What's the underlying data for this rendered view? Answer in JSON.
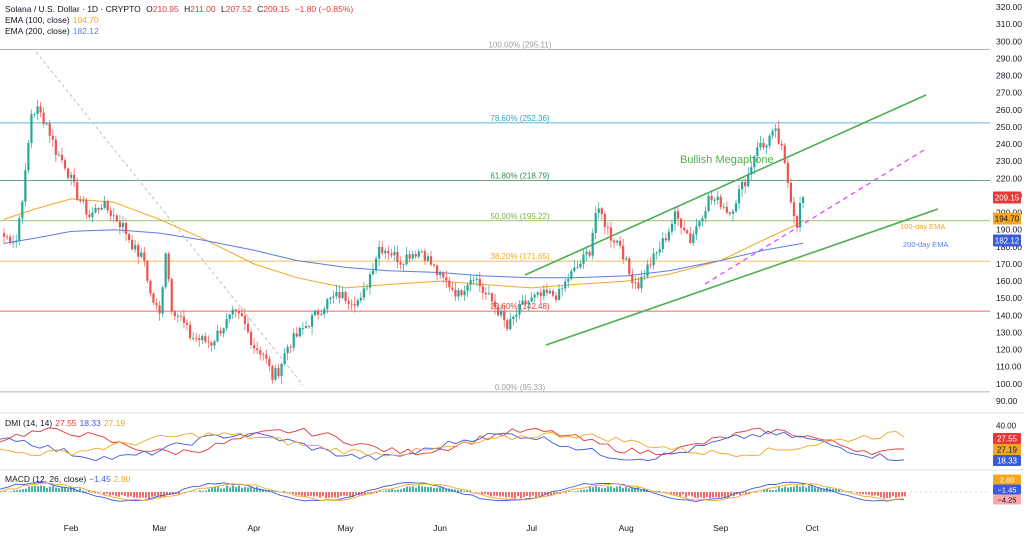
{
  "header": {
    "symbol": "Solana / U.S. Dollar · 1D · CRYPTO",
    "o_label": "O",
    "o_value": "210.95",
    "h_label": "H",
    "h_value": "211.00",
    "l_label": "L",
    "l_value": "207.52",
    "c_label": "C",
    "c_value": "209.15",
    "change": "−1.80 (−0.85%)"
  },
  "indicators_legend": [
    {
      "label": "EMA (100, close)",
      "value": "194.70",
      "color": "#f5a623"
    },
    {
      "label": "EMA (200, close)",
      "value": "182.12",
      "color": "#5b7de8"
    }
  ],
  "chart_data": [
    {
      "type": "candlestick",
      "title": "Solana / U.S. Dollar · 1D · CRYPTO",
      "x_ticks": [
        "Feb",
        "Mar",
        "Apr",
        "May",
        "Jun",
        "Jul",
        "Aug",
        "Sep",
        "Oct"
      ],
      "y_ticks": [
        90,
        100,
        110,
        120,
        130,
        140,
        150,
        160,
        170,
        180,
        190,
        200,
        210,
        220,
        230,
        240,
        250,
        260,
        270,
        280,
        290,
        300,
        310,
        320
      ],
      "ylim": [
        85,
        320
      ],
      "grid": false,
      "close_path": [
        [
          "Jan 10",
          186
        ],
        [
          "Jan 14",
          184
        ],
        [
          "Jan 17",
          222
        ],
        [
          "Jan 19",
          258
        ],
        [
          "Jan 21",
          260
        ],
        [
          "Jan 24",
          252
        ],
        [
          "Jan 27",
          236
        ],
        [
          "Jan 30",
          228
        ],
        [
          "Feb 3",
          210
        ],
        [
          "Feb 7",
          198
        ],
        [
          "Feb 11",
          205
        ],
        [
          "Feb 14",
          200
        ],
        [
          "Feb 18",
          192
        ],
        [
          "Feb 22",
          178
        ],
        [
          "Feb 25",
          172
        ],
        [
          "Feb 27",
          152
        ],
        [
          "Mar 1",
          140
        ],
        [
          "Mar 3",
          178
        ],
        [
          "Mar 5",
          145
        ],
        [
          "Mar 8",
          138
        ],
        [
          "Mar 11",
          128
        ],
        [
          "Mar 14",
          126
        ],
        [
          "Mar 18",
          124
        ],
        [
          "Mar 21",
          132
        ],
        [
          "Mar 25",
          140
        ],
        [
          "Mar 28",
          138
        ],
        [
          "Apr 1",
          122
        ],
        [
          "Apr 4",
          118
        ],
        [
          "Apr 7",
          104
        ],
        [
          "Apr 9",
          108
        ],
        [
          "Apr 12",
          122
        ],
        [
          "Apr 15",
          128
        ],
        [
          "Apr 18",
          134
        ],
        [
          "Apr 21",
          140
        ],
        [
          "Apr 25",
          148
        ],
        [
          "Apr 29",
          152
        ],
        [
          "May 2",
          150
        ],
        [
          "May 6",
          148
        ],
        [
          "May 9",
          164
        ],
        [
          "May 12",
          180
        ],
        [
          "May 15",
          178
        ],
        [
          "May 19",
          172
        ],
        [
          "May 22",
          176
        ],
        [
          "May 26",
          178
        ],
        [
          "May 29",
          170
        ],
        [
          "Jun 1",
          162
        ],
        [
          "Jun 4",
          158
        ],
        [
          "Jun 7",
          152
        ],
        [
          "Jun 10",
          160
        ],
        [
          "Jun 12",
          164
        ],
        [
          "Jun 15",
          154
        ],
        [
          "Jun 18",
          148
        ],
        [
          "Jun 21",
          140
        ],
        [
          "Jun 23",
          132
        ],
        [
          "Jun 25",
          138
        ],
        [
          "Jun 28",
          146
        ],
        [
          "Jul 2",
          150
        ],
        [
          "Jul 6",
          152
        ],
        [
          "Jul 10",
          152
        ],
        [
          "Jul 13",
          162
        ],
        [
          "Jul 16",
          168
        ],
        [
          "Jul 20",
          178
        ],
        [
          "Jul 22",
          200
        ],
        [
          "Jul 24",
          198
        ],
        [
          "Jul 27",
          186
        ],
        [
          "Jul 30",
          182
        ],
        [
          "Aug 2",
          164
        ],
        [
          "Aug 5",
          158
        ],
        [
          "Aug 8",
          168
        ],
        [
          "Aug 11",
          176
        ],
        [
          "Aug 14",
          186
        ],
        [
          "Aug 17",
          198
        ],
        [
          "Aug 20",
          192
        ],
        [
          "Aug 22",
          184
        ],
        [
          "Aug 25",
          196
        ],
        [
          "Aug 28",
          208
        ],
        [
          "Sep 1",
          206
        ],
        [
          "Sep 4",
          200
        ],
        [
          "Sep 7",
          212
        ],
        [
          "Sep 10",
          222
        ],
        [
          "Sep 13",
          240
        ],
        [
          "Sep 15",
          238
        ],
        [
          "Sep 17",
          244
        ],
        [
          "Sep 19",
          246
        ],
        [
          "Sep 21",
          236
        ],
        [
          "Sep 23",
          218
        ],
        [
          "Sep 25",
          200
        ],
        [
          "Sep 26",
          194
        ],
        [
          "Sep 27",
          204
        ],
        [
          "Sep 28",
          209
        ]
      ],
      "ema100": [
        [
          "Jan 10",
          196
        ],
        [
          "Jan 20",
          202
        ],
        [
          "Feb 1",
          208
        ],
        [
          "Feb 15",
          206
        ],
        [
          "Mar 1",
          196
        ],
        [
          "Mar 15",
          185
        ],
        [
          "Apr 1",
          170
        ],
        [
          "Apr 15",
          162
        ],
        [
          "May 1",
          156
        ],
        [
          "May 15",
          158
        ],
        [
          "Jun 1",
          160
        ],
        [
          "Jun 15",
          158
        ],
        [
          "Jul 1",
          156
        ],
        [
          "Jul 15",
          158
        ],
        [
          "Aug 1",
          160
        ],
        [
          "Aug 15",
          164
        ],
        [
          "Sep 1",
          172
        ],
        [
          "Sep 15",
          184
        ],
        [
          "Sep 28",
          194.7
        ]
      ],
      "ema200": [
        [
          "Jan 10",
          182
        ],
        [
          "Jan 20",
          185
        ],
        [
          "Feb 1",
          189
        ],
        [
          "Feb 15",
          190
        ],
        [
          "Mar 1",
          188
        ],
        [
          "Mar 15",
          184
        ],
        [
          "Apr 1",
          178
        ],
        [
          "Apr 15",
          172
        ],
        [
          "May 1",
          168
        ],
        [
          "May 15",
          166
        ],
        [
          "Jun 1",
          165
        ],
        [
          "Jun 15",
          163
        ],
        [
          "Jul 1",
          162
        ],
        [
          "Jul 15",
          162
        ],
        [
          "Aug 1",
          163
        ],
        [
          "Aug 15",
          166
        ],
        [
          "Sep 1",
          172
        ],
        [
          "Sep 15",
          178
        ],
        [
          "Sep 28",
          182.12
        ]
      ],
      "fibonacci": [
        {
          "label": "100.00% (295.11)",
          "value": 295.11,
          "color": "#9e9e9e"
        },
        {
          "label": "78.60% (252.36)",
          "value": 252.36,
          "color": "#26a6c9"
        },
        {
          "label": "61.80% (218.79)",
          "value": 218.79,
          "color": "#2e8b57"
        },
        {
          "label": "50.00% (195.22)",
          "value": 195.22,
          "color": "#7cb342"
        },
        {
          "label": "38.20% (171.65)",
          "value": 171.65,
          "color": "#f5a623"
        },
        {
          "label": "23.60% (142.48)",
          "value": 142.48,
          "color": "#e53935"
        },
        {
          "label": "0.00% (95.33)",
          "value": 95.33,
          "color": "#9e9e9e"
        }
      ],
      "annotations": [
        {
          "text": "Bullish Megaphone",
          "color": "#4caf50"
        },
        {
          "text": "100-day EMA",
          "color": "#f5a623"
        },
        {
          "text": "200-day EMA",
          "color": "#5b7de8"
        }
      ],
      "price_tags": [
        {
          "value": "209.15",
          "color": "#e53935"
        },
        {
          "value": "194.70",
          "color": "#f5a623"
        },
        {
          "value": "182.12",
          "color": "#3b5bdb"
        }
      ]
    },
    {
      "type": "line",
      "title": "DMI (14, 14)",
      "legend_values": [
        "27.55",
        "18.33",
        "27.19"
      ],
      "y_ticks": [
        20,
        40
      ],
      "ylim": [
        5,
        48
      ],
      "price_tags": [
        {
          "value": "27.55",
          "color": "#e53935"
        },
        {
          "value": "27.19",
          "color": "#f5a623"
        },
        {
          "value": "18.33",
          "color": "#3b5bdb"
        }
      ]
    },
    {
      "type": "bar",
      "title": "MACD (12, 26, close)",
      "legend_values": [
        "−1.45",
        "2.80"
      ],
      "price_tags": [
        {
          "value": "2.80",
          "color": "#f5a623"
        },
        {
          "value": "−1.45",
          "color": "#3b5bdb"
        },
        {
          "value": "−4.25",
          "color": "#f7a8a8"
        }
      ]
    }
  ]
}
